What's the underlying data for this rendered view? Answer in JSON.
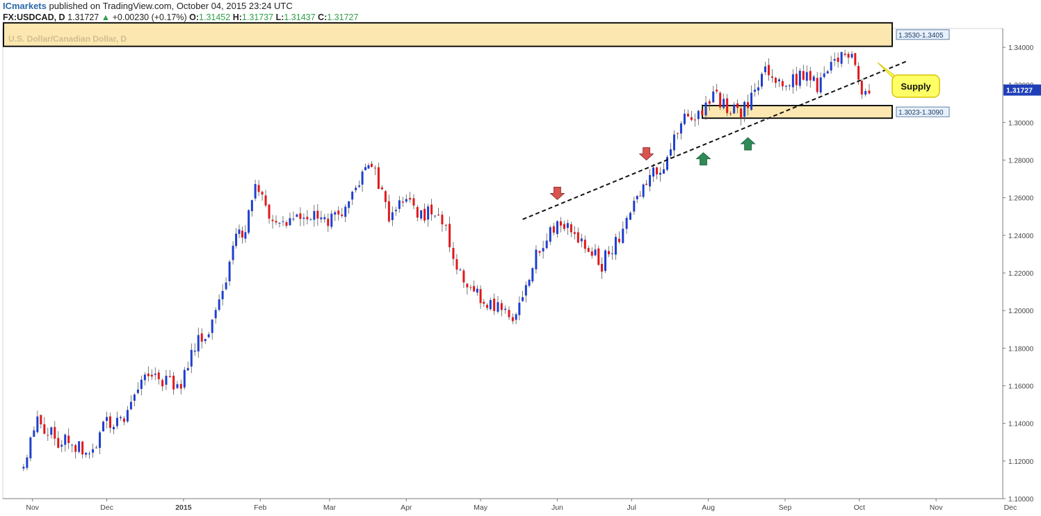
{
  "header": {
    "brand": "ICmarkets",
    "published": "published on TradingView.com, October 04, 2015 23:24 UTC",
    "symbol": "FX:USDCAD, D",
    "last": "1.31727",
    "change": "+0.00230 (+0.17%)",
    "o_label": "O:",
    "o_value": "1.31452",
    "h_label": "H:",
    "h_value": "1.31737",
    "l_label": "L:",
    "l_value": "1.31437",
    "c_label": "C:",
    "c_value": "1.31727"
  },
  "chart_data": {
    "type": "candlestick",
    "title": "U.S. Dollar/Canadian Dollar, D",
    "ylim": [
      1.1,
      1.35
    ],
    "y_ticks": [
      "1.34000",
      "1.32000",
      "1.30000",
      "1.28000",
      "1.26000",
      "1.24000",
      "1.22000",
      "1.20000",
      "1.18000",
      "1.16000",
      "1.14000",
      "1.12000",
      "1.10000"
    ],
    "x_ticks": [
      "Nov",
      "Dec",
      "2015",
      "Feb",
      "Mar",
      "Apr",
      "May",
      "Jun",
      "Jul",
      "Aug",
      "Sep",
      "Oct",
      "Nov",
      "Dec"
    ],
    "last_price_label": "1.31727",
    "colors": {
      "up": "#1e3fcf",
      "down": "#e0181c",
      "zone_fill": "#fde7b0",
      "zone_edge": "#111111",
      "callout": "#ffff66"
    },
    "zones": [
      {
        "label": "1.3530-1.3405",
        "high": 1.353,
        "low": 1.3405
      },
      {
        "label": "1.3023-1.3090",
        "high": 1.309,
        "low": 1.3023
      }
    ],
    "trendline": {
      "start": [
        "2015-05-18",
        1.2485
      ],
      "end": [
        "2015-10-20",
        1.3325
      ],
      "style": "dashed"
    },
    "annotations": [
      {
        "text": "Supply",
        "type": "callout"
      },
      {
        "type": "arrow-down",
        "date": "2015-06-01",
        "price": 1.259,
        "color": "#d9534f"
      },
      {
        "type": "arrow-down",
        "date": "2015-07-07",
        "price": 1.28,
        "color": "#d9534f"
      },
      {
        "type": "arrow-up",
        "date": "2015-07-30",
        "price": 1.284,
        "color": "#2e8b57"
      },
      {
        "type": "arrow-up",
        "date": "2015-08-17",
        "price": 1.292,
        "color": "#2e8b57"
      }
    ],
    "anchors": [
      [
        "2014-10-27",
        1.115
      ],
      [
        "2014-11-03",
        1.14
      ],
      [
        "2014-11-10",
        1.132
      ],
      [
        "2014-11-17",
        1.128
      ],
      [
        "2014-11-24",
        1.124
      ],
      [
        "2014-12-01",
        1.14
      ],
      [
        "2014-12-08",
        1.145
      ],
      [
        "2014-12-15",
        1.164
      ],
      [
        "2014-12-22",
        1.162
      ],
      [
        "2014-12-31",
        1.162
      ],
      [
        "2015-01-07",
        1.184
      ],
      [
        "2015-01-14",
        1.196
      ],
      [
        "2015-01-21",
        1.235
      ],
      [
        "2015-01-26",
        1.244
      ],
      [
        "2015-01-30",
        1.27
      ],
      [
        "2015-02-06",
        1.248
      ],
      [
        "2015-02-13",
        1.245
      ],
      [
        "2015-02-20",
        1.25
      ],
      [
        "2015-02-27",
        1.248
      ],
      [
        "2015-03-06",
        1.25
      ],
      [
        "2015-03-13",
        1.27
      ],
      [
        "2015-03-18",
        1.278
      ],
      [
        "2015-03-25",
        1.25
      ],
      [
        "2015-04-01",
        1.262
      ],
      [
        "2015-04-07",
        1.25
      ],
      [
        "2015-04-14",
        1.255
      ],
      [
        "2015-04-20",
        1.23
      ],
      [
        "2015-04-27",
        1.21
      ],
      [
        "2015-05-05",
        1.205
      ],
      [
        "2015-05-14",
        1.198
      ],
      [
        "2015-05-22",
        1.225
      ],
      [
        "2015-06-01",
        1.248
      ],
      [
        "2015-06-08",
        1.24
      ],
      [
        "2015-06-15",
        1.23
      ],
      [
        "2015-06-19",
        1.225
      ],
      [
        "2015-06-26",
        1.238
      ],
      [
        "2015-07-02",
        1.255
      ],
      [
        "2015-07-07",
        1.27
      ],
      [
        "2015-07-14",
        1.275
      ],
      [
        "2015-07-21",
        1.3
      ],
      [
        "2015-07-28",
        1.305
      ],
      [
        "2015-08-03",
        1.315
      ],
      [
        "2015-08-10",
        1.305
      ],
      [
        "2015-08-17",
        1.308
      ],
      [
        "2015-08-24",
        1.328
      ],
      [
        "2015-08-31",
        1.317
      ],
      [
        "2015-09-07",
        1.325
      ],
      [
        "2015-09-14",
        1.32
      ],
      [
        "2015-09-21",
        1.33
      ],
      [
        "2015-09-28",
        1.34
      ],
      [
        "2015-10-02",
        1.3145
      ],
      [
        "2015-10-05",
        1.3173
      ]
    ]
  }
}
